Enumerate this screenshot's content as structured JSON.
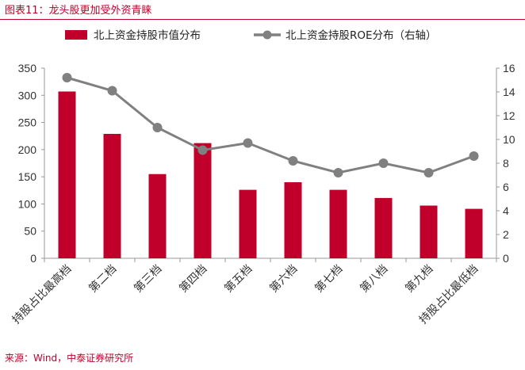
{
  "figure": {
    "title": "图表11：龙头股更加受外资青睐",
    "source": "来源：Wind，中泰证券研究所"
  },
  "colors": {
    "bar": "#c0002a",
    "line": "#808080",
    "title": "#c0002a"
  },
  "chart_data": {
    "type": "bar",
    "categories": [
      "持股占比最高档",
      "第二档",
      "第三档",
      "第四档",
      "第五档",
      "第六档",
      "第七档",
      "第八档",
      "第九档",
      "持股占比最低档"
    ],
    "series": [
      {
        "name": "北上资金持股市值分布",
        "type": "bar",
        "axis": "left",
        "values": [
          307,
          229,
          155,
          212,
          126,
          140,
          126,
          111,
          97,
          91
        ]
      },
      {
        "name": "北上资金持股ROE分布（右轴）",
        "type": "line",
        "axis": "right",
        "values": [
          15.2,
          14.1,
          11.0,
          9.1,
          9.7,
          8.2,
          7.2,
          8.0,
          7.2,
          8.6
        ]
      }
    ],
    "y_left": {
      "lim": [
        0,
        350
      ],
      "ticks": [
        0,
        50,
        100,
        150,
        200,
        250,
        300,
        350
      ]
    },
    "y_right": {
      "lim": [
        0,
        16
      ],
      "ticks": [
        0,
        2,
        4,
        6,
        8,
        10,
        12,
        14,
        16
      ]
    },
    "legend": "top",
    "grid": false
  }
}
